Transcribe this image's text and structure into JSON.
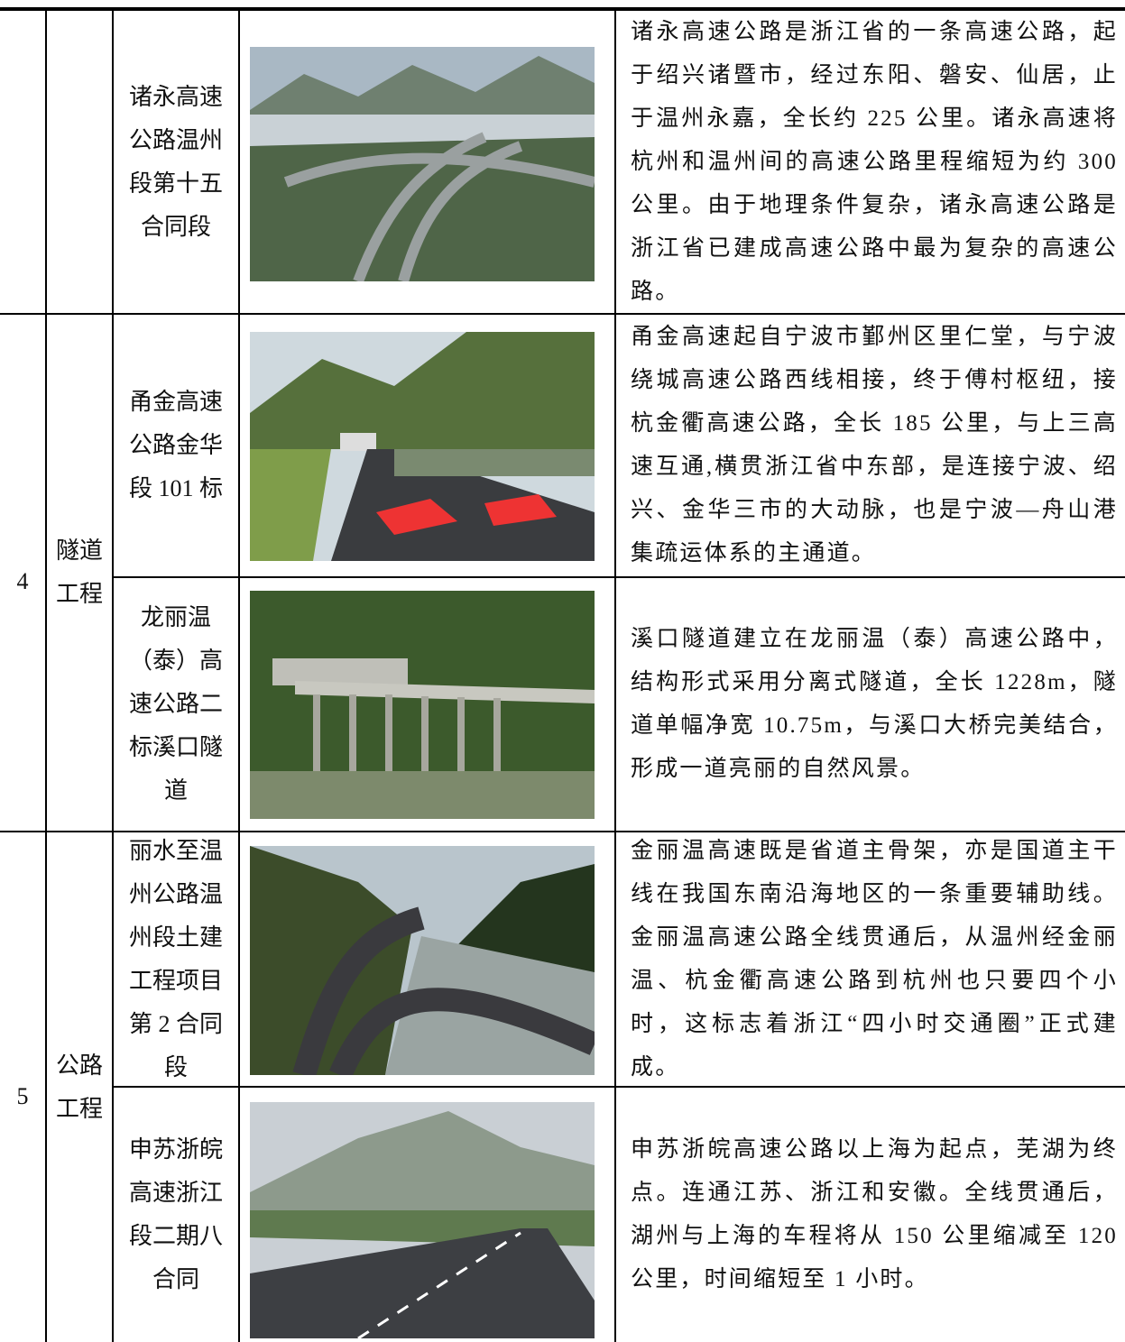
{
  "table": {
    "continued_row": {
      "project": "诸永高速公路温州段第十五合同段",
      "description": "诸永高速公路是浙江省的一条高速公路，起于绍兴诸暨市，经过东阳、磐安、仙居，止于温州永嘉，全长约 225 公里。诸永高速将杭州和温州间的高速公路里程缩短为约 300 公里。由于地理条件复杂，诸永高速公路是浙江省已建成高速公路中最为复杂的高速公路。"
    },
    "groups": [
      {
        "number": "4",
        "category": "隧道工程",
        "rows": [
          {
            "project": "甬金高速公路金华段 101 标",
            "description": "甬金高速起自宁波市鄞州区里仁堂，与宁波绕城高速公路西线相接，终于傅村枢纽，接杭金衢高速公路，全长 185 公里，与上三高速互通,横贯浙江省中东部，是连接宁波、绍兴、金华三市的大动脉，也是宁波—舟山港集疏运体系的主通道。"
          },
          {
            "project": "龙丽温（泰）高速公路二标溪口隧道",
            "description": "溪口隧道建立在龙丽温（泰）高速公路中，结构形式采用分离式隧道，全长 1228m，隧道单幅净宽 10.75m，与溪口大桥完美结合，形成一道亮丽的自然风景。"
          }
        ]
      },
      {
        "number": "5",
        "category": "公路工程",
        "rows": [
          {
            "project": "丽水至温州公路温州段土建工程项目第 2 合同段",
            "description": "金丽温高速既是省道主骨架，亦是国道主干线在我国东南沿海地区的一条重要辅助线。金丽温高速公路全线贯通后，从温州经金丽温、杭金衢高速公路到杭州也只要四个小时，这标志着浙江“四小时交通圈”正式建成。"
          },
          {
            "project": "申苏浙皖高速浙江段二期八合同",
            "description": "申苏浙皖高速公路以上海为起点，芜湖为终点。连通江苏、浙江和安徽。全线贯通后，湖州与上海的车程将从 150 公里缩减至 120 公里，时间缩短至 1 小时。"
          }
        ]
      }
    ]
  }
}
